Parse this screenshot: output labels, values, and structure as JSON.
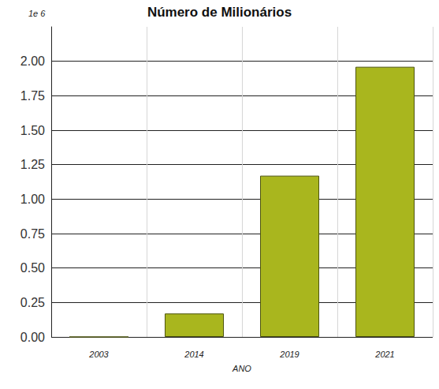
{
  "chart_data": {
    "type": "bar",
    "title": "Número de Milionários",
    "x_label": "ANO",
    "annotation": "1e 6",
    "categories": [
      "2003",
      "2014",
      "2019",
      "2021"
    ],
    "values": [
      0,
      0.17,
      1.17,
      1.96
    ],
    "color": "#a9b61e",
    "ylim": [
      0,
      2.25
    ],
    "yticks": [
      {
        "value": 0,
        "label": "0.00"
      },
      {
        "value": 0.25,
        "label": "0.25"
      },
      {
        "value": 0.5,
        "label": "0.50"
      },
      {
        "value": 0.75,
        "label": "0.75"
      },
      {
        "value": 1,
        "label": "1.00"
      },
      {
        "value": 1.25,
        "label": "1.25"
      },
      {
        "value": 1.5,
        "label": "1.50"
      },
      {
        "value": 1.75,
        "label": "1.75"
      },
      {
        "value": 2,
        "label": "2.00"
      }
    ],
    "grid": true
  }
}
